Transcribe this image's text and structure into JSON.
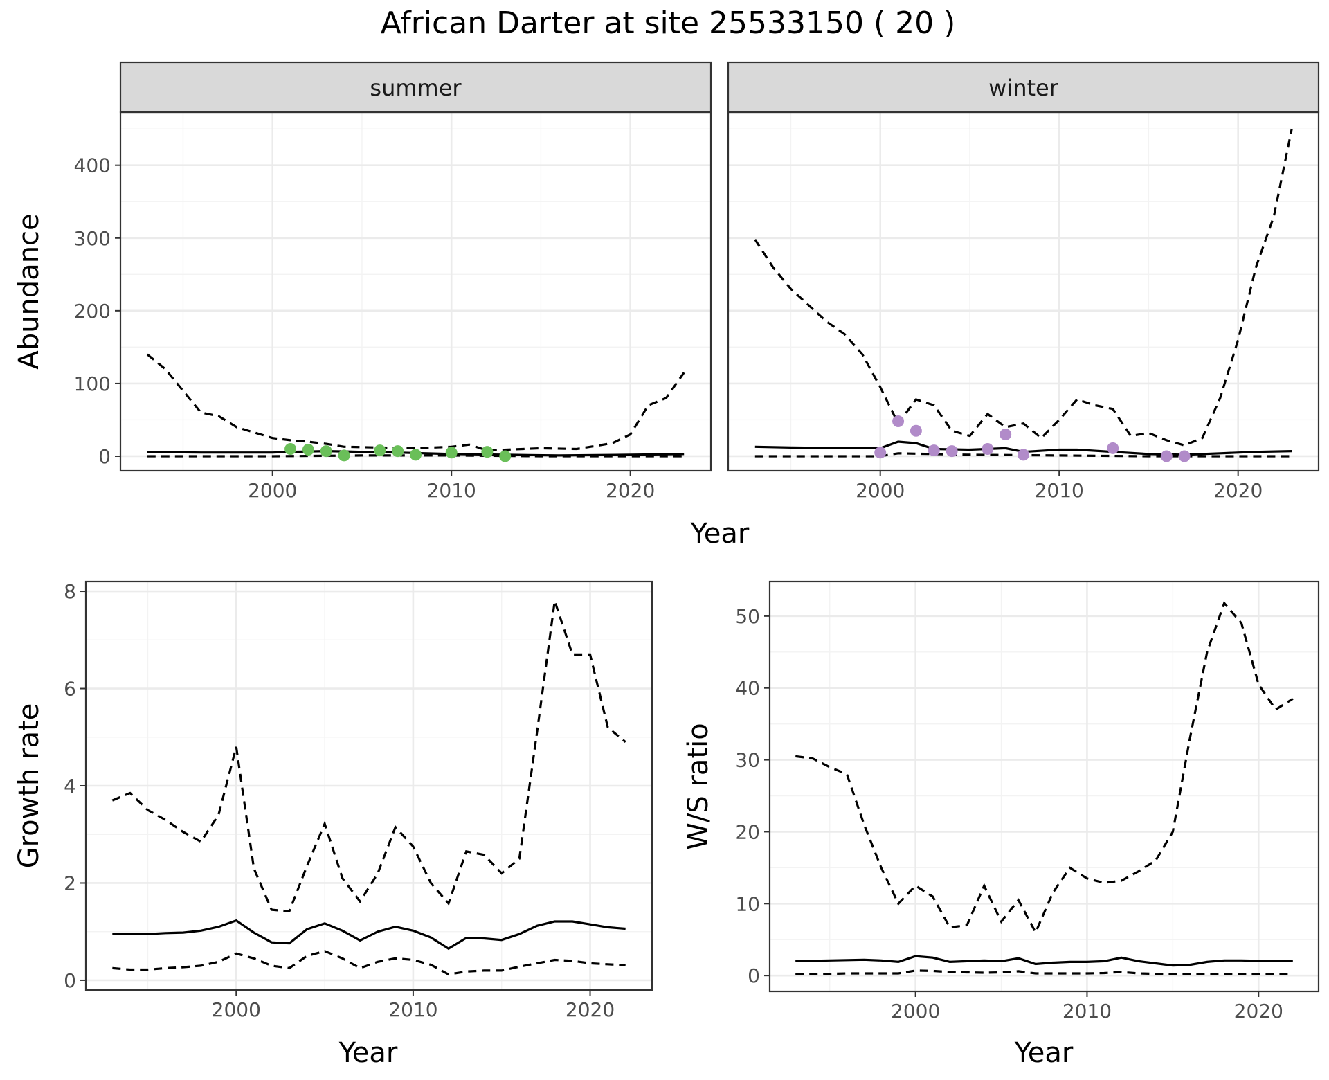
{
  "figure": {
    "title": "African Darter at site 25533150 ( 20 )"
  },
  "colors": {
    "summer_points": "#6abf59",
    "winter_points": "#b18bc9",
    "lines": "#000000"
  },
  "chart_data": [
    {
      "id": "abundance",
      "type": "line",
      "facets": [
        {
          "strip": "summer",
          "point_color": "#6abf59",
          "mean": {
            "x": [
              1993,
              1996,
              2000,
              2001,
              2003,
              2005,
              2007,
              2010,
              2013,
              2016,
              2020,
              2023
            ],
            "y": [
              6,
              5,
              5,
              6,
              7,
              6,
              5,
              3,
              2,
              1,
              2,
              3
            ]
          },
          "upper": {
            "x": [
              1993,
              1994,
              1996,
              1997,
              1998,
              2000,
              2001,
              2002,
              2003,
              2004,
              2006,
              2008,
              2010,
              2011,
              2012,
              2014,
              2015,
              2017,
              2019,
              2020,
              2021,
              2022,
              2023
            ],
            "y": [
              140,
              120,
              60,
              55,
              40,
              25,
              22,
              20,
              17,
              13,
              12,
              11,
              13,
              16,
              8,
              10,
              11,
              10,
              18,
              30,
              70,
              80,
              115
            ]
          },
          "lower": {
            "x": [
              1993,
              2000,
              2005,
              2010,
              2015,
              2023
            ],
            "y": [
              0,
              0,
              1,
              1,
              0,
              0
            ]
          },
          "points": {
            "x": [
              2001,
              2002,
              2003,
              2004,
              2006,
              2007,
              2008,
              2010,
              2012,
              2013
            ],
            "y": [
              10,
              9,
              7,
              1,
              8,
              7,
              2,
              5,
              6,
              0
            ]
          }
        },
        {
          "strip": "winter",
          "point_color": "#b18bc9",
          "mean": {
            "x": [
              1993,
              1995,
              1998,
              2000,
              2001,
              2002,
              2003,
              2005,
              2007,
              2008,
              2010,
              2011,
              2013,
              2015,
              2017,
              2019,
              2021,
              2023
            ],
            "y": [
              13,
              12,
              11,
              11,
              20,
              18,
              10,
              9,
              11,
              6,
              9,
              9,
              6,
              3,
              2,
              4,
              6,
              7
            ]
          },
          "upper": {
            "x": [
              1993,
              1994,
              1995,
              1997,
              1998,
              1999,
              2000,
              2001,
              2002,
              2003,
              2004,
              2005,
              2006,
              2007,
              2008,
              2009,
              2010,
              2011,
              2012,
              2013,
              2014,
              2015,
              2016,
              2017,
              2018,
              2019,
              2020,
              2021,
              2022,
              2023
            ],
            "y": [
              298,
              260,
              230,
              185,
              168,
              140,
              95,
              45,
              78,
              70,
              35,
              28,
              58,
              40,
              45,
              25,
              50,
              78,
              70,
              65,
              28,
              32,
              22,
              15,
              25,
              80,
              160,
              260,
              330,
              450
            ]
          },
          "lower": {
            "x": [
              1993,
              2000,
              2001,
              2005,
              2010,
              2015,
              2023
            ],
            "y": [
              0,
              0,
              4,
              2,
              1,
              0,
              0
            ]
          },
          "points": {
            "x": [
              2000,
              2001,
              2002,
              2003,
              2004,
              2006,
              2007,
              2008,
              2013,
              2016,
              2017
            ],
            "y": [
              5,
              48,
              35,
              8,
              7,
              10,
              30,
              2,
              11,
              0,
              0
            ]
          }
        }
      ],
      "xlabel": "Year",
      "ylabel": "Abundance",
      "xlim": [
        1991.5,
        2024.5
      ],
      "ylim": [
        -20,
        473
      ],
      "xticks": [
        2000,
        2010,
        2020
      ],
      "yticks": [
        0,
        100,
        200,
        300,
        400
      ],
      "grid": true
    },
    {
      "id": "growth",
      "type": "line",
      "mean": {
        "x": [
          1993,
          1994,
          1995,
          1996,
          1997,
          1998,
          1999,
          2000,
          2001,
          2002,
          2003,
          2004,
          2005,
          2006,
          2007,
          2008,
          2009,
          2010,
          2011,
          2012,
          2013,
          2014,
          2015,
          2016,
          2017,
          2018,
          2019,
          2020,
          2021,
          2022
        ],
        "y": [
          0.95,
          0.95,
          0.95,
          0.97,
          0.98,
          1.02,
          1.1,
          1.23,
          0.98,
          0.78,
          0.76,
          1.05,
          1.17,
          1.02,
          0.82,
          1.0,
          1.1,
          1.02,
          0.88,
          0.65,
          0.87,
          0.86,
          0.83,
          0.95,
          1.12,
          1.21,
          1.21,
          1.15,
          1.09,
          1.06
        ]
      },
      "upper": {
        "x": [
          1993,
          1994,
          1995,
          1996,
          1997,
          1998,
          1999,
          2000,
          2001,
          2002,
          2003,
          2004,
          2005,
          2006,
          2007,
          2008,
          2009,
          2010,
          2011,
          2012,
          2013,
          2014,
          2015,
          2016,
          2017,
          2018,
          2019,
          2020,
          2021,
          2022
        ],
        "y": [
          3.7,
          3.85,
          3.5,
          3.3,
          3.05,
          2.85,
          3.4,
          4.8,
          2.3,
          1.45,
          1.42,
          2.35,
          3.22,
          2.1,
          1.62,
          2.2,
          3.15,
          2.75,
          2.0,
          1.58,
          2.65,
          2.58,
          2.2,
          2.5,
          5.1,
          7.8,
          6.7,
          6.7,
          5.2,
          4.9
        ]
      },
      "lower": {
        "x": [
          1993,
          1994,
          1995,
          1996,
          1997,
          1998,
          1999,
          2000,
          2001,
          2002,
          2003,
          2004,
          2005,
          2006,
          2007,
          2008,
          2009,
          2010,
          2011,
          2012,
          2013,
          2014,
          2015,
          2016,
          2017,
          2018,
          2019,
          2020,
          2021,
          2022
        ],
        "y": [
          0.25,
          0.22,
          0.22,
          0.25,
          0.27,
          0.3,
          0.38,
          0.55,
          0.45,
          0.3,
          0.25,
          0.5,
          0.6,
          0.45,
          0.25,
          0.38,
          0.45,
          0.42,
          0.32,
          0.12,
          0.18,
          0.2,
          0.2,
          0.28,
          0.35,
          0.42,
          0.4,
          0.35,
          0.33,
          0.31
        ]
      },
      "xlabel": "Year",
      "ylabel": "Growth rate",
      "xlim": [
        1991.5,
        2023.5
      ],
      "ylim": [
        -0.2,
        8.2
      ],
      "xticks": [
        2000,
        2010,
        2020
      ],
      "yticks": [
        0,
        2,
        4,
        6,
        8
      ],
      "grid": true
    },
    {
      "id": "ws_ratio",
      "type": "line",
      "mean": {
        "x": [
          1993,
          1994,
          1995,
          1996,
          1997,
          1998,
          1999,
          2000,
          2001,
          2002,
          2003,
          2004,
          2005,
          2006,
          2007,
          2008,
          2009,
          2010,
          2011,
          2012,
          2013,
          2014,
          2015,
          2016,
          2017,
          2018,
          2019,
          2020,
          2021,
          2022
        ],
        "y": [
          2.0,
          2.05,
          2.1,
          2.15,
          2.2,
          2.1,
          1.9,
          2.7,
          2.5,
          1.9,
          2.0,
          2.1,
          2.0,
          2.4,
          1.6,
          1.8,
          1.9,
          1.9,
          2.0,
          2.5,
          2.0,
          1.7,
          1.4,
          1.5,
          1.9,
          2.1,
          2.1,
          2.05,
          2.0,
          2.0
        ]
      },
      "upper": {
        "x": [
          1993,
          1994,
          1995,
          1996,
          1997,
          1998,
          1999,
          2000,
          2001,
          2002,
          2003,
          2004,
          2005,
          2006,
          2007,
          2008,
          2009,
          2010,
          2011,
          2012,
          2013,
          2014,
          2015,
          2016,
          2017,
          2018,
          2019,
          2020,
          2021,
          2022
        ],
        "y": [
          30.5,
          30.2,
          29.0,
          28.0,
          21.0,
          15.0,
          10.0,
          12.5,
          11.0,
          6.7,
          7.0,
          12.5,
          7.5,
          10.5,
          6.0,
          11.5,
          15.0,
          13.5,
          12.9,
          13.2,
          14.5,
          16.0,
          20.0,
          33.0,
          45.0,
          51.8,
          49.0,
          40.5,
          37.0,
          38.5
        ]
      },
      "lower": {
        "x": [
          1993,
          1994,
          1995,
          1996,
          1997,
          1998,
          1999,
          2000,
          2001,
          2002,
          2003,
          2004,
          2005,
          2006,
          2007,
          2008,
          2009,
          2010,
          2011,
          2012,
          2013,
          2014,
          2015,
          2016,
          2017,
          2018,
          2019,
          2020,
          2021,
          2022
        ],
        "y": [
          0.2,
          0.2,
          0.25,
          0.3,
          0.3,
          0.3,
          0.3,
          0.7,
          0.65,
          0.5,
          0.45,
          0.4,
          0.45,
          0.6,
          0.3,
          0.3,
          0.3,
          0.3,
          0.35,
          0.5,
          0.3,
          0.25,
          0.2,
          0.2,
          0.2,
          0.2,
          0.2,
          0.2,
          0.2,
          0.2
        ]
      },
      "xlabel": "Year",
      "ylabel": "W/S ratio",
      "xlim": [
        1991.5,
        2023.5
      ],
      "ylim": [
        -2.2,
        54.8
      ],
      "xticks": [
        2000,
        2010,
        2020
      ],
      "yticks": [
        0,
        10,
        20,
        30,
        40,
        50
      ],
      "grid": true
    }
  ]
}
